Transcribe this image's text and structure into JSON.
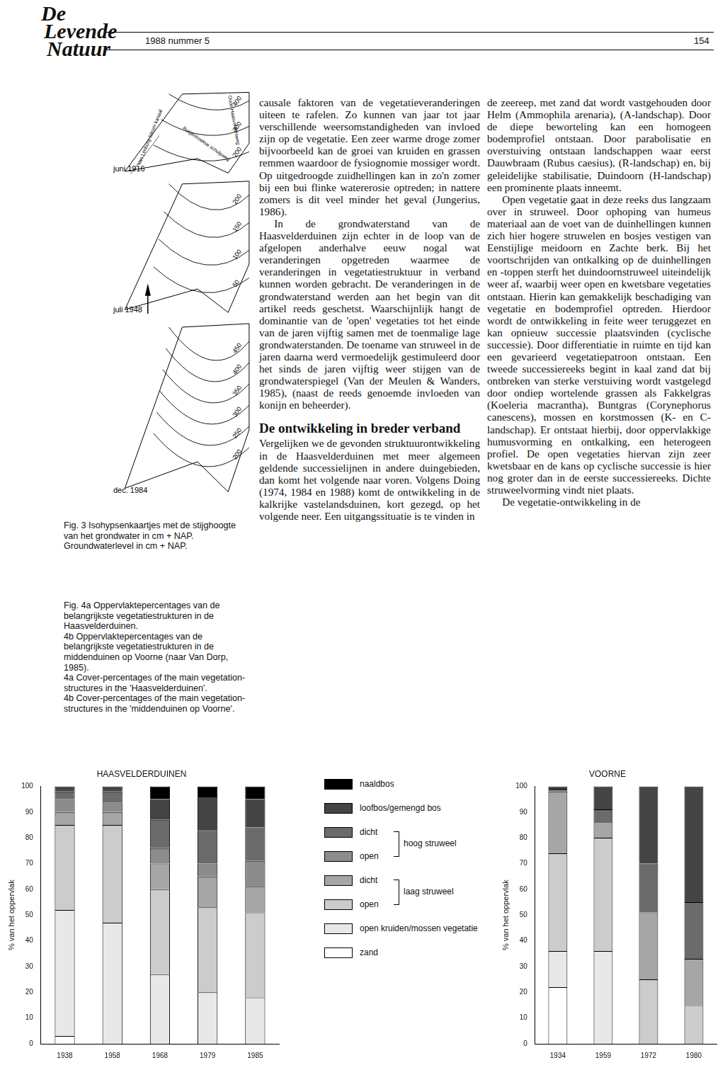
{
  "header": {
    "logo": [
      "De",
      "Levende",
      "Natuur"
    ],
    "issue": "1988 nummer 5",
    "page": "154"
  },
  "figure3": {
    "maps": [
      {
        "date": "juni 1916",
        "roads": [
          "Van Limburg Stirum kanaal",
          "Oude Haasveldersweg",
          "Ruigenhoekse schulpweg"
        ],
        "contours": [
          400,
          300,
          200
        ]
      },
      {
        "date": "juli 1948",
        "roads": [],
        "contours": [
          200,
          150,
          100,
          50
        ]
      },
      {
        "date": "dec. 1984",
        "roads": [],
        "contours": [
          450,
          400,
          350,
          300,
          250,
          200
        ]
      }
    ],
    "caption": [
      "Fig. 3 Isohypsenkaartjes met de stijghoogte van het grondwater in cm + NAP.",
      "Groundwaterlevel in cm + NAP."
    ]
  },
  "figure4_caption": [
    "Fig. 4a Oppervlaktepercentages van de belangrijkste vegetatiestrukturen in de Haasvelderduinen.",
    "4b Oppervlaktepercentages van de belangrijkste vegetatiestrukturen in de middenduinen op Voorne (naar Van Dorp, 1985).",
    "4a Cover-percentages of the main vegetation-structures in the 'Haasvelderduinen'.",
    "4b Cover-percentages of the main vegetation-structures in the 'middenduinen op Voorne'."
  ],
  "columns": [
    [
      {
        "kind": "p",
        "text": "causale faktoren van de vegetatieveranderingen uiteen te rafelen. Zo kunnen van jaar tot jaar verschillende weersomstandigheden van invloed zijn op de vegetatie. Een zeer warme droge zomer bijvoorbeeld kan de groei van kruiden en grassen remmen waardoor de fysiognomie mossiger wordt. Op uitgedroogde zuidhellingen kan in zo'n zomer bij een bui flinke watererosie optreden; in nattere zomers is dit veel minder het geval (Jungerius, 1986)."
      },
      {
        "kind": "p",
        "text": "In de grondwaterstand van de Haasvelderduinen zijn echter in de loop van de afgelopen anderhalve eeuw nogal wat veranderingen opgetreden waarmee de veranderingen in vegetatiestruktuur in verband kunnen worden gebracht. De veranderingen in de grondwaterstand werden aan het begin van dit artikel reeds geschetst. Waarschijnlijk hangt de dominantie van de 'open' vegetaties tot het einde van de jaren vijftig samen met de toenmalige lage grondwaterstanden. De toename van struweel in de jaren daarna werd vermoedelijk gestimuleerd door het sinds de jaren vijftig weer stijgen van de grondwaterspiegel (Van der Meulen & Wanders, 1985), (naast de reeds genoemde invloeden van konijn en beheerder)."
      },
      {
        "kind": "h",
        "text": "De ontwikkeling in breder verband"
      },
      {
        "kind": "p",
        "text": "Vergelijken we de gevonden struktuurontwikkeling in de Haasvelderduinen met meer algemeen geldende successielijnen in andere duingebieden, dan komt het volgende naar voren. Volgens Doing (1974, 1984 en 1988) komt de ontwikkeling in de kalkrijke vastelandsduinen, kort gezegd, op het volgende neer. Een uitgangssituatie is te vinden in"
      }
    ],
    [
      {
        "kind": "p",
        "text": "de zeereep, met zand dat wordt vastgehouden door Helm (Ammophila arenaria), (A-landschap). Door de diepe beworteling kan een homogeen bodemprofiel ontstaan. Door parabolisatie en overstuiving ontstaan landschappen waar eerst Dauwbraam (Rubus caesius), (R-landschap) en, bij geleidelijke stabilisatie, Duindoorn (H-landschap) een prominente plaats inneemt."
      },
      {
        "kind": "p",
        "text": "Open vegetatie gaat in deze reeks dus langzaam over in struweel. Door ophoping van humeus materiaal aan de voet van de duinhellingen kunnen zich hier hogere struwelen en bosjes vestigen van Eenstijlige meidoorn en Zachte berk. Bij het voortschrijden van ontkalking op de duinhellingen en -toppen sterft het duindoornstruweel uiteindelijk weer af, waarbij weer open en kwetsbare vegetaties ontstaan. Hierin kan gemakkelijk beschadiging van vegetatie en bodemprofiel optreden. Hierdoor wordt de ontwikkeling in feite weer teruggezet en kan opnieuw successie plaatsvinden (cyclische successie). Door differentiatie in ruimte en tijd kan een gevarieerd vegetatiepatroon ontstaan. Een tweede successiereeks begint in kaal zand dat bij ontbreken van sterke verstuiving wordt vastgelegd door ondiep wortelende grassen als Fakkelgras (Koeleria macrantha), Buntgras (Corynephorus canescens), mossen en korstmossen (K- en C-landschap). Er ontstaat hierbij, door oppervlakkige humusvorming en ontkalking, een heterogeen profiel. De open vegetaties hiervan zijn zeer kwetsbaar en de kans op cyclische successie is hier nog groter dan in de eerste successiereeks. Dichte struweelvorming vindt niet plaats."
      },
      {
        "kind": "p",
        "text": "De vegetatie-ontwikkeling in de"
      }
    ]
  ],
  "legend_groups": [
    {
      "label": "hoog struweel",
      "series": [
        5,
        4
      ]
    },
    {
      "label": "laag struweel",
      "series": [
        3,
        2
      ]
    }
  ],
  "chart_data": [
    {
      "type": "bar",
      "title": "HAASVELDERDUINEN",
      "y_label": "% van het oppervlak",
      "categories": [
        "1938",
        "1958",
        "1968",
        "1979",
        "1985"
      ],
      "stacked": true,
      "grid": false,
      "ylim": [
        0,
        100
      ],
      "yticks": [
        0,
        10,
        20,
        30,
        40,
        50,
        60,
        70,
        80,
        90,
        100
      ],
      "series": [
        {
          "name": "zand",
          "color": "#ffffff",
          "values": [
            3,
            0,
            0,
            0,
            0
          ]
        },
        {
          "name": "open kruiden/mossen vegetatie",
          "color": "#e8e8e8",
          "values": [
            49,
            47,
            27,
            20,
            18
          ]
        },
        {
          "name": "open",
          "color": "#cccccc",
          "values": [
            33,
            38,
            33,
            33,
            33
          ]
        },
        {
          "name": "dicht",
          "color": "#a6a6a6",
          "values": [
            5,
            5,
            10,
            12,
            10
          ]
        },
        {
          "name": "open",
          "color": "#8c8c8c",
          "values": [
            5,
            4,
            6,
            5,
            10
          ]
        },
        {
          "name": "dicht",
          "color": "#6b6b6b",
          "values": [
            3,
            4,
            11,
            13,
            13
          ]
        },
        {
          "name": "loofbos/gemengd bos",
          "color": "#444444",
          "values": [
            2,
            2,
            8,
            13,
            11
          ]
        },
        {
          "name": "naaldbos",
          "color": "#000000",
          "values": [
            0,
            0,
            5,
            4,
            5
          ]
        }
      ]
    },
    {
      "type": "bar",
      "title": "VOORNE",
      "y_label": "% van het oppervlak",
      "categories": [
        "1934",
        "1959",
        "1972",
        "1980"
      ],
      "stacked": true,
      "grid": false,
      "ylim": [
        0,
        100
      ],
      "yticks": [
        0,
        10,
        20,
        30,
        40,
        50,
        60,
        70,
        80,
        90,
        100
      ],
      "series": [
        {
          "name": "zand",
          "color": "#ffffff",
          "values": [
            22,
            0,
            0,
            0
          ]
        },
        {
          "name": "open kruiden/mossen vegetatie",
          "color": "#e8e8e8",
          "values": [
            14,
            36,
            0,
            0
          ]
        },
        {
          "name": "open",
          "color": "#cccccc",
          "values": [
            38,
            44,
            25,
            15
          ]
        },
        {
          "name": "dicht",
          "color": "#a6a6a6",
          "values": [
            24,
            6,
            26,
            18
          ]
        },
        {
          "name": "open",
          "color": "#8c8c8c",
          "values": [
            0,
            0,
            0,
            0
          ]
        },
        {
          "name": "dicht",
          "color": "#6b6b6b",
          "values": [
            1,
            5,
            19,
            22
          ]
        },
        {
          "name": "loofbos/gemengd bos",
          "color": "#444444",
          "values": [
            1,
            9,
            30,
            45
          ]
        },
        {
          "name": "naaldbos",
          "color": "#000000",
          "values": [
            0,
            0,
            0,
            0
          ]
        }
      ]
    }
  ]
}
